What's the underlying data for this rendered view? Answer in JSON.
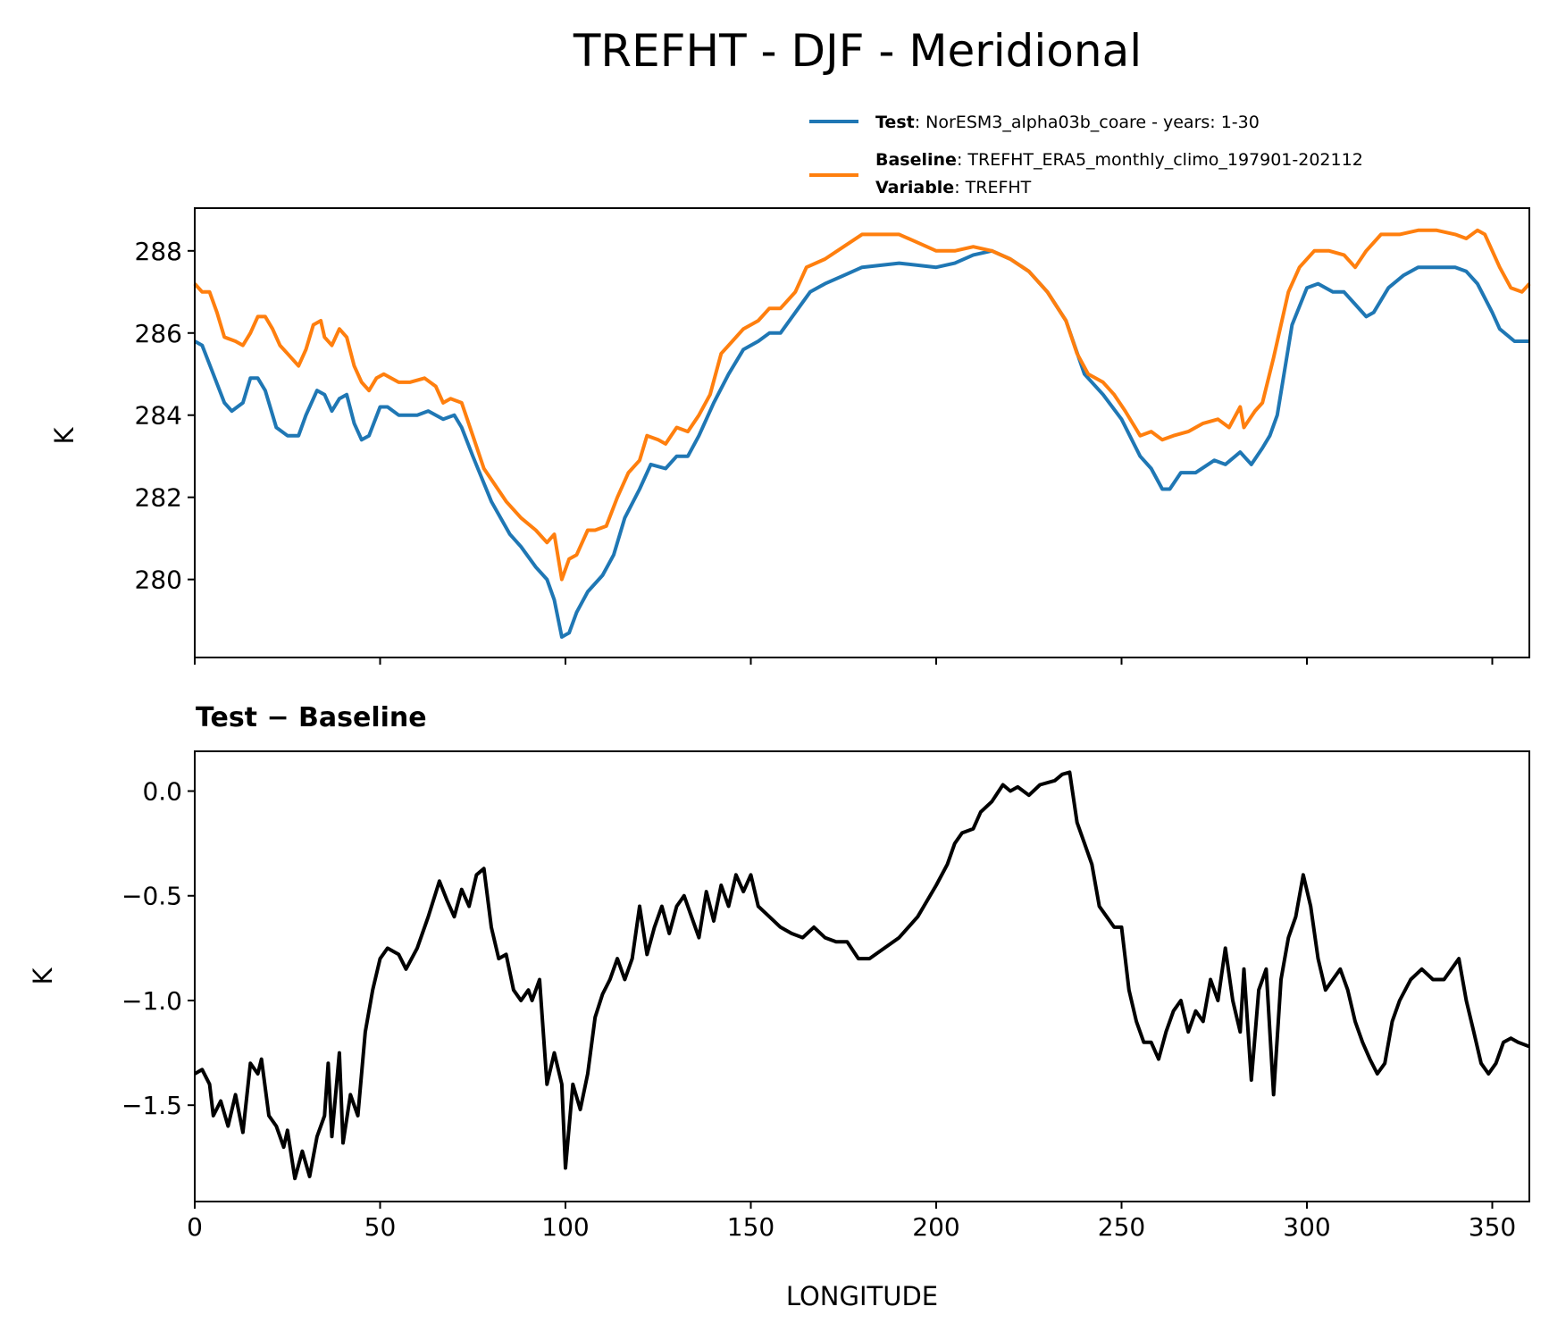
{
  "chart_data": [
    {
      "type": "line",
      "title": "TREFHT - DJF - Meridional",
      "xlabel": "",
      "ylabel": "K",
      "xlim": [
        0,
        360
      ],
      "ylim": [
        278.1,
        289.04
      ],
      "yticks": [
        280,
        282,
        284,
        286,
        288
      ],
      "xticks": [
        0,
        50,
        100,
        150,
        200,
        250,
        300,
        350
      ],
      "grid": false,
      "legend": {
        "placement": "above-right",
        "entries": [
          {
            "series": "Test",
            "label_bold": "Test",
            "label_text": ": NorESM3_alpha03b_coare - years: 1-30",
            "color": "#1f77b4"
          },
          {
            "series": "Baseline",
            "label_bold": "Baseline",
            "label_text": ": TREFHT_ERA5_monthly_climo_197901-202112",
            "extra_bold": "Variable",
            "extra_text": ": TREFHT",
            "color": "#ff7f0e"
          }
        ]
      },
      "series": [
        {
          "name": "Test",
          "color": "#1f77b4",
          "x": [
            0,
            2,
            5,
            8,
            10,
            13,
            15,
            17,
            19,
            22,
            25,
            28,
            30,
            33,
            35,
            37,
            39,
            41,
            43,
            45,
            47,
            50,
            52,
            55,
            60,
            63,
            67,
            70,
            72,
            75,
            80,
            85,
            88,
            92,
            95,
            97,
            99,
            101,
            103,
            106,
            110,
            113,
            116,
            120,
            123,
            127,
            130,
            133,
            136,
            140,
            144,
            148,
            152,
            155,
            158,
            162,
            166,
            170,
            175,
            180,
            190,
            200,
            205,
            210,
            215,
            220,
            225,
            230,
            235,
            240,
            245,
            250,
            255,
            258,
            261,
            263,
            266,
            270,
            275,
            278,
            282,
            285,
            288,
            290,
            292,
            296,
            300,
            303,
            307,
            310,
            313,
            316,
            318,
            322,
            326,
            330,
            335,
            340,
            343,
            346,
            350,
            352,
            356,
            360
          ],
          "y": [
            285.8,
            285.7,
            285.0,
            284.3,
            284.1,
            284.3,
            284.9,
            284.9,
            284.6,
            283.7,
            283.5,
            283.5,
            284.0,
            284.6,
            284.5,
            284.1,
            284.4,
            284.5,
            283.8,
            283.4,
            283.5,
            284.2,
            284.2,
            284.0,
            284.0,
            284.1,
            283.9,
            284.0,
            283.7,
            283.0,
            281.9,
            281.1,
            280.8,
            280.3,
            280.0,
            279.5,
            278.6,
            278.7,
            279.2,
            279.7,
            280.1,
            280.6,
            281.5,
            282.2,
            282.8,
            282.7,
            283.0,
            283.0,
            283.5,
            284.3,
            285.0,
            285.6,
            285.8,
            286.0,
            286.0,
            286.5,
            287.0,
            287.2,
            287.4,
            287.6,
            287.7,
            287.6,
            287.7,
            287.9,
            288.0,
            287.8,
            287.5,
            287.0,
            286.3,
            285.0,
            284.5,
            283.9,
            283.0,
            282.7,
            282.2,
            282.2,
            282.6,
            282.6,
            282.9,
            282.8,
            283.1,
            282.8,
            283.2,
            283.5,
            284.0,
            286.2,
            287.1,
            287.2,
            287.0,
            287.0,
            286.7,
            286.4,
            286.5,
            287.1,
            287.4,
            287.6,
            287.6,
            287.6,
            287.5,
            287.2,
            286.5,
            286.1,
            285.8,
            285.8
          ]
        },
        {
          "name": "Baseline",
          "color": "#ff7f0e",
          "x": [
            0,
            2,
            4,
            6,
            8,
            11,
            13,
            15,
            17,
            19,
            21,
            23,
            25,
            28,
            30,
            32,
            34,
            35,
            37,
            39,
            41,
            43,
            45,
            47,
            49,
            51,
            55,
            58,
            62,
            65,
            67,
            69,
            72,
            75,
            78,
            81,
            84,
            88,
            92,
            95,
            97,
            99,
            101,
            103,
            106,
            108,
            111,
            114,
            117,
            120,
            122,
            125,
            127,
            130,
            133,
            136,
            139,
            142,
            145,
            148,
            152,
            155,
            158,
            162,
            165,
            170,
            175,
            180,
            185,
            190,
            195,
            200,
            205,
            210,
            215,
            220,
            225,
            230,
            235,
            238,
            241,
            245,
            248,
            251,
            255,
            258,
            261,
            264,
            268,
            272,
            276,
            279,
            282,
            283,
            286,
            288,
            291,
            295,
            298,
            302,
            306,
            310,
            313,
            316,
            320,
            325,
            330,
            335,
            340,
            343,
            346,
            348,
            352,
            355,
            358,
            360
          ],
          "y": [
            287.2,
            287.0,
            287.0,
            286.5,
            285.9,
            285.8,
            285.7,
            286.0,
            286.4,
            286.4,
            286.1,
            285.7,
            285.5,
            285.2,
            285.6,
            286.2,
            286.3,
            285.9,
            285.7,
            286.1,
            285.9,
            285.2,
            284.8,
            284.6,
            284.9,
            285.0,
            284.8,
            284.8,
            284.9,
            284.7,
            284.3,
            284.4,
            284.3,
            283.5,
            282.7,
            282.3,
            281.9,
            281.5,
            281.2,
            280.9,
            281.1,
            280.0,
            280.5,
            280.6,
            281.2,
            281.2,
            281.3,
            282.0,
            282.6,
            282.9,
            283.5,
            283.4,
            283.3,
            283.7,
            283.6,
            284.0,
            284.5,
            285.5,
            285.8,
            286.1,
            286.3,
            286.6,
            286.6,
            287.0,
            287.6,
            287.8,
            288.1,
            288.4,
            288.4,
            288.4,
            288.2,
            288.0,
            288.0,
            288.1,
            288.0,
            287.8,
            287.5,
            287.0,
            286.3,
            285.5,
            285.0,
            284.8,
            284.5,
            284.1,
            283.5,
            283.6,
            283.4,
            283.5,
            283.6,
            283.8,
            283.9,
            283.7,
            284.2,
            283.7,
            284.1,
            284.3,
            285.4,
            287.0,
            287.6,
            288.0,
            288.0,
            287.9,
            287.6,
            288.0,
            288.4,
            288.4,
            288.5,
            288.5,
            288.4,
            288.3,
            288.5,
            288.4,
            287.6,
            287.1,
            287.0,
            287.2
          ]
        }
      ]
    },
    {
      "type": "line",
      "title": "Test − Baseline",
      "xlabel": "LONGITUDE",
      "ylabel": "K",
      "xlim": [
        0,
        360
      ],
      "ylim": [
        -1.96,
        0.19
      ],
      "yticks": [
        0.0,
        -0.5,
        -1.0,
        -1.5
      ],
      "ytick_labels": [
        "0.0",
        "−0.5",
        "−1.0",
        "−1.5"
      ],
      "xticks": [
        0,
        50,
        100,
        150,
        200,
        250,
        300,
        350
      ],
      "xtick_labels": [
        "0",
        "50",
        "100",
        "150",
        "200",
        "250",
        "300",
        "350"
      ],
      "grid": false,
      "series": [
        {
          "name": "Test - Baseline",
          "color": "#000000",
          "x": [
            0,
            2,
            4,
            5,
            7,
            9,
            11,
            13,
            15,
            17,
            18,
            20,
            22,
            24,
            25,
            27,
            29,
            31,
            33,
            35,
            36,
            37,
            39,
            40,
            42,
            44,
            46,
            48,
            50,
            52,
            55,
            57,
            60,
            63,
            66,
            68,
            70,
            72,
            74,
            76,
            78,
            80,
            82,
            84,
            86,
            88,
            90,
            91,
            93,
            95,
            97,
            99,
            100,
            102,
            104,
            106,
            108,
            110,
            112,
            114,
            116,
            118,
            120,
            122,
            124,
            126,
            128,
            130,
            132,
            134,
            136,
            138,
            140,
            142,
            144,
            146,
            148,
            150,
            152,
            155,
            158,
            161,
            164,
            167,
            170,
            173,
            176,
            179,
            182,
            186,
            190,
            195,
            200,
            203,
            205,
            207,
            210,
            212,
            215,
            218,
            220,
            222,
            225,
            228,
            232,
            234,
            236,
            238,
            240,
            242,
            244,
            246,
            248,
            250,
            252,
            254,
            256,
            258,
            260,
            262,
            264,
            266,
            268,
            270,
            272,
            274,
            276,
            278,
            280,
            282,
            283,
            285,
            287,
            289,
            291,
            293,
            295,
            297,
            299,
            301,
            303,
            305,
            307,
            309,
            311,
            313,
            315,
            317,
            319,
            321,
            323,
            325,
            328,
            331,
            334,
            337,
            339,
            341,
            343,
            345,
            347,
            349,
            351,
            353,
            355,
            357,
            360
          ],
          "y": [
            -1.35,
            -1.33,
            -1.4,
            -1.55,
            -1.48,
            -1.6,
            -1.45,
            -1.63,
            -1.3,
            -1.35,
            -1.28,
            -1.55,
            -1.6,
            -1.7,
            -1.62,
            -1.85,
            -1.72,
            -1.84,
            -1.65,
            -1.55,
            -1.3,
            -1.65,
            -1.25,
            -1.68,
            -1.45,
            -1.55,
            -1.15,
            -0.95,
            -0.8,
            -0.75,
            -0.78,
            -0.85,
            -0.75,
            -0.6,
            -0.43,
            -0.52,
            -0.6,
            -0.47,
            -0.55,
            -0.4,
            -0.37,
            -0.65,
            -0.8,
            -0.78,
            -0.95,
            -1.0,
            -0.95,
            -1.0,
            -0.9,
            -1.4,
            -1.25,
            -1.4,
            -1.8,
            -1.4,
            -1.52,
            -1.35,
            -1.08,
            -0.97,
            -0.9,
            -0.8,
            -0.9,
            -0.8,
            -0.55,
            -0.78,
            -0.65,
            -0.55,
            -0.68,
            -0.55,
            -0.5,
            -0.6,
            -0.7,
            -0.48,
            -0.62,
            -0.45,
            -0.55,
            -0.4,
            -0.48,
            -0.4,
            -0.55,
            -0.6,
            -0.65,
            -0.68,
            -0.7,
            -0.65,
            -0.7,
            -0.72,
            -0.72,
            -0.8,
            -0.8,
            -0.75,
            -0.7,
            -0.6,
            -0.45,
            -0.35,
            -0.25,
            -0.2,
            -0.18,
            -0.1,
            -0.05,
            0.03,
            0.0,
            0.02,
            -0.02,
            0.03,
            0.05,
            0.08,
            0.09,
            -0.15,
            -0.25,
            -0.35,
            -0.55,
            -0.6,
            -0.65,
            -0.65,
            -0.95,
            -1.1,
            -1.2,
            -1.2,
            -1.28,
            -1.15,
            -1.05,
            -1.0,
            -1.15,
            -1.05,
            -1.1,
            -0.9,
            -1.0,
            -0.75,
            -1.0,
            -1.15,
            -0.85,
            -1.38,
            -0.95,
            -0.85,
            -1.45,
            -0.9,
            -0.7,
            -0.6,
            -0.4,
            -0.55,
            -0.8,
            -0.95,
            -0.9,
            -0.85,
            -0.95,
            -1.1,
            -1.2,
            -1.28,
            -1.35,
            -1.3,
            -1.1,
            -1.0,
            -0.9,
            -0.85,
            -0.9,
            -0.9,
            -0.85,
            -0.8,
            -1.0,
            -1.15,
            -1.3,
            -1.35,
            -1.3,
            -1.2,
            -1.18,
            -1.2,
            -1.22
          ]
        }
      ]
    }
  ]
}
